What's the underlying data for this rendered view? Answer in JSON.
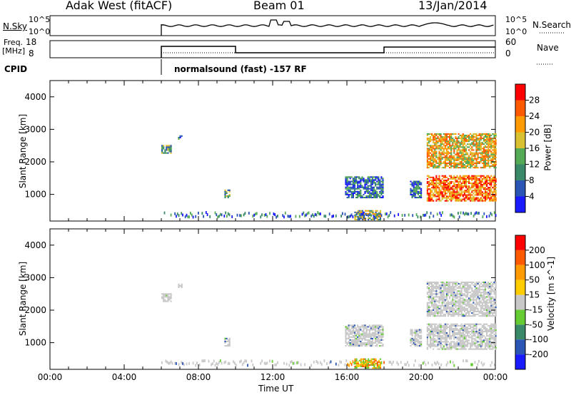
{
  "header": {
    "station": "Adak West (fitACF)",
    "beam": "Beam 01",
    "date": "13/Jan/2014"
  },
  "noise_panel": {
    "left_label": "N.Sky",
    "left_tick_top": "10^5",
    "left_tick_bottom": "10^0",
    "right_tick_top": "10^5",
    "right_tick_bottom": "10^0",
    "right_label": "N.Search"
  },
  "freq_panel": {
    "left_label_1": "Freq.",
    "left_label_2": "[MHz]",
    "left_tick_top": "18",
    "left_tick_bottom": "8",
    "right_tick_top": "60",
    "right_tick_bottom": "0",
    "right_label": "Nave"
  },
  "cpid_panel": {
    "label": "CPID",
    "mode_text": "normalsound (fast) -157 RF"
  },
  "chart_data": [
    {
      "type": "heatmap",
      "name": "power",
      "xlabel": "Time UT",
      "ylabel": "Slant Range [km]",
      "x_range_hours": [
        0,
        24
      ],
      "ylim": [
        180,
        4500
      ],
      "yticks": [
        "1000",
        "2000",
        "3000",
        "4000"
      ],
      "colorbar_label": "Power [dB]",
      "colorbar_ticks": [
        "4",
        "8",
        "12",
        "16",
        "20",
        "24",
        "28"
      ],
      "colorbar_colors": [
        "#1a1aff",
        "#2a55b5",
        "#3a8a6a",
        "#55aa55",
        "#d8c030",
        "#ff9a00",
        "#ff5a00",
        "#ff0000"
      ],
      "echo_regions": [
        {
          "t0": 6.0,
          "t1": 6.5,
          "r0": 2250,
          "r1": 2520,
          "level": "mid"
        },
        {
          "t0": 6.9,
          "t1": 7.1,
          "r0": 2680,
          "r1": 2800,
          "level": "low"
        },
        {
          "t0": 9.4,
          "t1": 9.7,
          "r0": 880,
          "r1": 1120,
          "level": "mid"
        },
        {
          "t0": 15.9,
          "t1": 17.9,
          "r0": 880,
          "r1": 1530,
          "level": "low"
        },
        {
          "t0": 19.4,
          "t1": 20.0,
          "r0": 880,
          "r1": 1380,
          "level": "low"
        },
        {
          "t0": 20.3,
          "t1": 24.0,
          "r0": 780,
          "r1": 1550,
          "level": "high"
        },
        {
          "t0": 20.3,
          "t1": 24.0,
          "r0": 1800,
          "r1": 2850,
          "level": "midhigh"
        },
        {
          "t0": 16.4,
          "t1": 17.8,
          "r0": 200,
          "r1": 500,
          "level": "mixed"
        }
      ]
    },
    {
      "type": "heatmap",
      "name": "velocity",
      "xlabel": "Time UT",
      "ylabel": "Slant Range [km]",
      "x_range_hours": [
        0,
        24
      ],
      "ylim": [
        180,
        4500
      ],
      "yticks": [
        "1000",
        "2000",
        "3000",
        "4000"
      ],
      "xticks": [
        "00:00",
        "04:00",
        "08:00",
        "12:00",
        "16:00",
        "20:00",
        "00:00"
      ],
      "colorbar_label": "Velocity [m s^-1]",
      "colorbar_ticks": [
        "200",
        "100",
        "50",
        "15",
        "-15",
        "-50",
        "-100",
        "-200"
      ],
      "colorbar_colors": [
        "#1a1aff",
        "#2a55b5",
        "#3a8a6a",
        "#66cc33",
        "#c8c8c8",
        "#ffcc00",
        "#ff9a00",
        "#ff5a00",
        "#ff0000"
      ],
      "echo_regions": [
        {
          "t0": 6.0,
          "t1": 6.5,
          "r0": 2250,
          "r1": 2520,
          "level": "grey"
        },
        {
          "t0": 6.9,
          "t1": 7.1,
          "r0": 2680,
          "r1": 2800,
          "level": "grey"
        },
        {
          "t0": 9.4,
          "t1": 9.7,
          "r0": 880,
          "r1": 1120,
          "level": "grey"
        },
        {
          "t0": 15.9,
          "t1": 17.9,
          "r0": 880,
          "r1": 1530,
          "level": "grey"
        },
        {
          "t0": 19.4,
          "t1": 20.0,
          "r0": 880,
          "r1": 1380,
          "level": "grey"
        },
        {
          "t0": 20.3,
          "t1": 24.0,
          "r0": 780,
          "r1": 1550,
          "level": "grey"
        },
        {
          "t0": 20.3,
          "t1": 24.0,
          "r0": 1800,
          "r1": 2850,
          "level": "grey"
        },
        {
          "t0": 16.4,
          "t1": 17.8,
          "r0": 200,
          "r1": 500,
          "level": "warm"
        }
      ]
    }
  ]
}
